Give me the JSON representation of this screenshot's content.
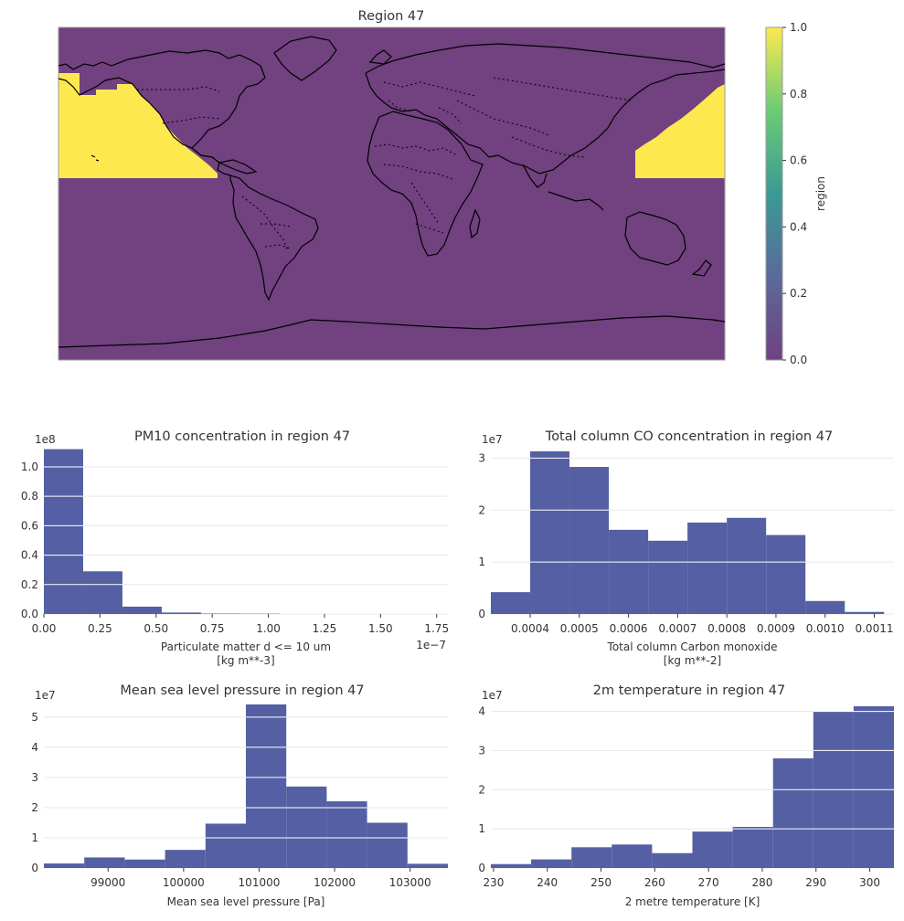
{
  "map": {
    "title": "Region 47",
    "colorbar_label": "region",
    "colorbar_ticks": [
      "0.0",
      "0.2",
      "0.4",
      "0.6",
      "0.8",
      "1.0"
    ],
    "colors": {
      "zero": "#714180",
      "one": "#fde94f"
    }
  },
  "chart_data": [
    {
      "type": "bar",
      "title": "PM10 concentration in region 47",
      "xlabel": "Particulate matter d <= 10 um",
      "xlabel2": "[kg m**-3]",
      "x_offset_text": "1e−7",
      "y_offset_text": "1e8",
      "xlim": [
        0,
        1.8
      ],
      "ylim": [
        0,
        1.13
      ],
      "xticks": [
        0,
        0.25,
        0.5,
        0.75,
        1.0,
        1.25,
        1.5,
        1.75
      ],
      "xtick_labels": [
        "0.00",
        "0.25",
        "0.50",
        "0.75",
        "1.00",
        "1.25",
        "1.50",
        "1.75"
      ],
      "yticks": [
        0,
        0.2,
        0.4,
        0.6,
        0.8,
        1.0
      ],
      "ytick_labels": [
        "0.0",
        "0.2",
        "0.4",
        "0.6",
        "0.8",
        "1.0"
      ],
      "bin_edges": [
        0,
        0.175,
        0.35,
        0.525,
        0.7,
        0.875,
        1.05
      ],
      "values": [
        1.12,
        0.29,
        0.05,
        0.01,
        0.003,
        0.002
      ],
      "color": "#5460a3"
    },
    {
      "type": "bar",
      "title": "Total column CO concentration in region 47",
      "xlabel": "Total column Carbon monoxide",
      "xlabel2": "[kg m**-2]",
      "x_offset_text": "",
      "y_offset_text": "1e7",
      "xlim": [
        0.00032,
        0.00114
      ],
      "ylim": [
        0,
        3.2
      ],
      "xticks": [
        0.0004,
        0.0005,
        0.0006,
        0.0007,
        0.0008,
        0.0009,
        0.001,
        0.0011
      ],
      "xtick_labels": [
        "0.0004",
        "0.0005",
        "0.0006",
        "0.0007",
        "0.0008",
        "0.0009",
        "0.0010",
        "0.0011"
      ],
      "yticks": [
        0,
        1,
        2,
        3
      ],
      "ytick_labels": [
        "0",
        "1",
        "2",
        "3"
      ],
      "bin_edges": [
        0.00032,
        0.0004,
        0.00048,
        0.00056,
        0.00064,
        0.00072,
        0.0008,
        0.00088,
        0.00096,
        0.00104,
        0.00112
      ],
      "values": [
        0.42,
        3.13,
        2.83,
        1.62,
        1.41,
        1.76,
        1.85,
        1.52,
        0.25,
        0.04
      ],
      "color": "#5460a3"
    },
    {
      "type": "bar",
      "title": "Mean sea level pressure in region 47",
      "xlabel": "Mean sea level pressure [Pa]",
      "xlabel2": "",
      "x_offset_text": "",
      "y_offset_text": "1e7",
      "xlim": [
        98150,
        103500
      ],
      "ylim": [
        0,
        5.45
      ],
      "xticks": [
        99000,
        100000,
        101000,
        102000,
        103000
      ],
      "xtick_labels": [
        "99000",
        "100000",
        "101000",
        "102000",
        "103000"
      ],
      "yticks": [
        0,
        1,
        2,
        3,
        4,
        5
      ],
      "ytick_labels": [
        "0",
        "1",
        "2",
        "3",
        "4",
        "5"
      ],
      "bin_edges": [
        98150,
        98685,
        99220,
        99755,
        100290,
        100825,
        101360,
        101895,
        102430,
        102965,
        103500
      ],
      "values": [
        0.15,
        0.35,
        0.28,
        0.6,
        1.47,
        5.42,
        2.7,
        2.21,
        1.5,
        0.14
      ],
      "color": "#5460a3"
    },
    {
      "type": "bar",
      "title": "2m temperature in region 47",
      "xlabel": "2 metre temperature [K]",
      "xlabel2": "",
      "x_offset_text": "",
      "y_offset_text": "1e7",
      "xlim": [
        229.5,
        304.5
      ],
      "ylim": [
        0,
        4.2
      ],
      "xticks": [
        230,
        240,
        250,
        260,
        270,
        280,
        290,
        300
      ],
      "xtick_labels": [
        "230",
        "240",
        "250",
        "260",
        "270",
        "280",
        "290",
        "300"
      ],
      "yticks": [
        0,
        1,
        2,
        3,
        4
      ],
      "ytick_labels": [
        "0",
        "1",
        "2",
        "3",
        "4"
      ],
      "bin_edges": [
        229.5,
        237,
        244.5,
        252,
        259.5,
        267,
        274.5,
        282,
        289.5,
        297,
        304.5
      ],
      "values": [
        0.1,
        0.22,
        0.53,
        0.6,
        0.38,
        0.93,
        1.05,
        2.8,
        4.0,
        4.13
      ],
      "color": "#5460a3"
    }
  ]
}
